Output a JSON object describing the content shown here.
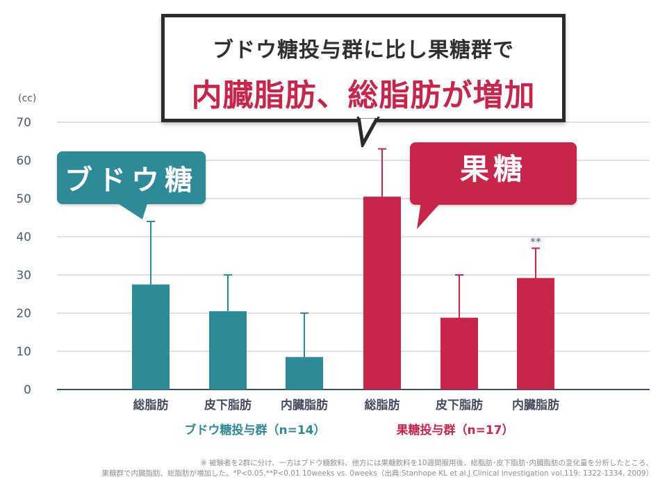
{
  "header": {
    "line1": "ブドウ糖投与群に比し果糖群で",
    "line2": "内臓脂肪、総脂肪が増加"
  },
  "bubbles": {
    "grape_label": "ブドウ糖",
    "fructose_label": "果糖"
  },
  "colors": {
    "grape": "#2e8a96",
    "fructose": "#c8254a",
    "axis_text": "#4a5a78",
    "grid": "#c9cfe0",
    "axis_line": "#3c4a6e"
  },
  "chart_data": {
    "type": "bar",
    "unit_label": "(cc)",
    "ylim": [
      0,
      70
    ],
    "yticks": [
      0,
      10,
      20,
      30,
      40,
      50,
      60,
      70
    ],
    "grid": true,
    "groups": [
      {
        "name": "ブドウ糖投与群（n=14）",
        "color": "#2e8a96",
        "categories": [
          "総脂肪",
          "皮下脂肪",
          "内臓脂肪"
        ],
        "values": [
          27.5,
          20.5,
          8.5
        ],
        "error_upper": [
          44,
          30,
          20
        ],
        "annotations": [
          "",
          "",
          ""
        ]
      },
      {
        "name": "果糖投与群（n=17）",
        "color": "#c8254a",
        "categories": [
          "総脂肪",
          "皮下脂肪",
          "内臓脂肪"
        ],
        "values": [
          50.5,
          18.8,
          29.2
        ],
        "error_upper": [
          63,
          30,
          37
        ],
        "annotations": [
          "",
          "",
          "**"
        ]
      }
    ]
  },
  "footnote": {
    "line1": "※ 被験者を2群に分け、一方はブドウ糖飲料、他方には果糖飲料を10週間服用後、総脂肪･皮下脂肪･内臓脂肪の変化量を分析したところ、",
    "line2": "果糖群で内臓脂肪、総脂肪が増加した。*P<0.05,**P<0.01  10weeks vs. 0weeks（出典:Stanhope KL et al.J Clinical Investigation vol.119: 1322-1334, 2009）"
  }
}
